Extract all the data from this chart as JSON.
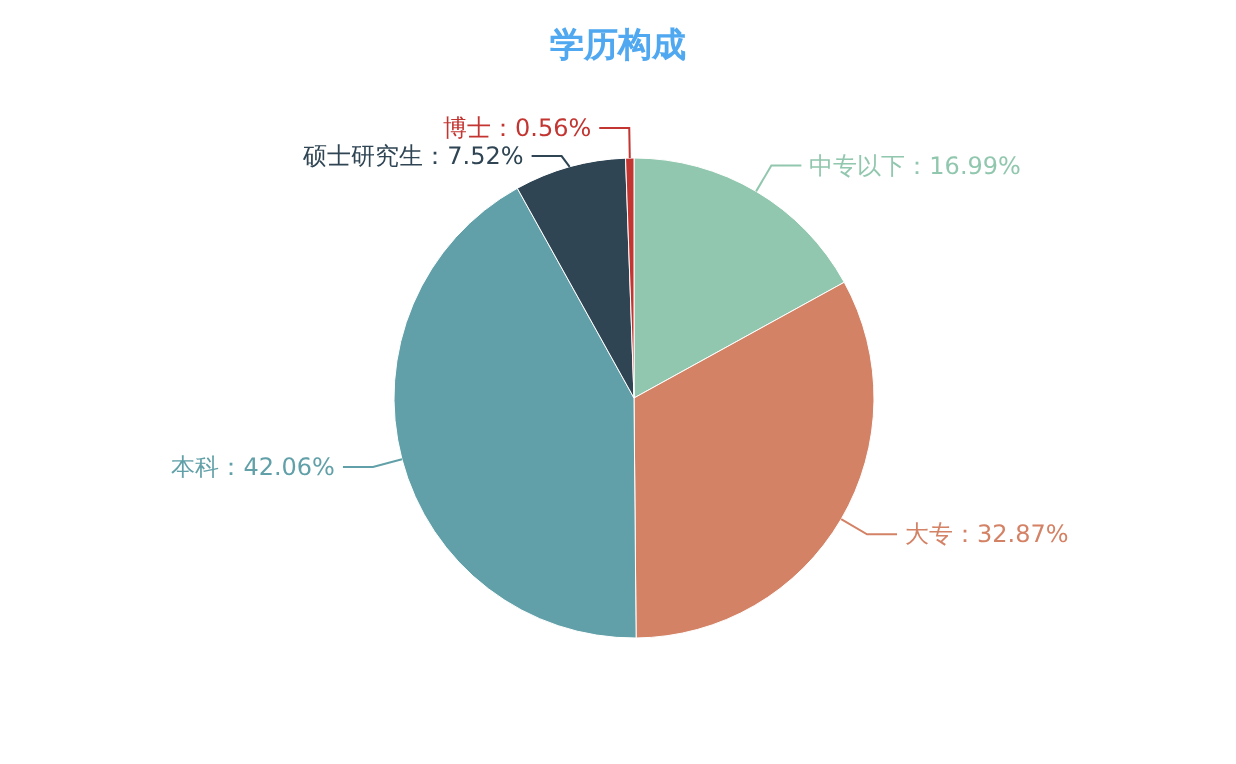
{
  "chart_data": {
    "type": "pie",
    "title": "学历构成",
    "categories": [
      "中专以下",
      "大专",
      "本科",
      "硕士研究生",
      "博士"
    ],
    "values": [
      16.99,
      32.87,
      42.06,
      7.52,
      0.56
    ],
    "value_labels": [
      "16.99%",
      "32.87%",
      "42.06%",
      "7.52%",
      "0.56%"
    ],
    "colors": [
      "#91c7ae",
      "#d48265",
      "#61a0a8",
      "#2f4554",
      "#c23531"
    ]
  }
}
